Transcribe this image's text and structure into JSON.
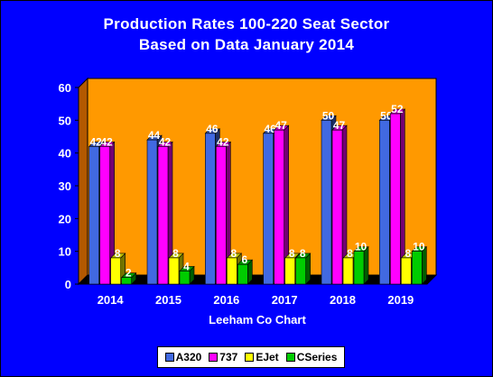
{
  "chart_data": {
    "type": "bar",
    "title": "Production Rates 100-220 Seat Sector",
    "subtitle": "Based on Data January 2014",
    "xlabel": "Leeham Co Chart",
    "ylabel": "",
    "ylim": [
      0,
      60
    ],
    "yticks": [
      0,
      10,
      20,
      30,
      40,
      50,
      60
    ],
    "categories": [
      "2014",
      "2015",
      "2016",
      "2017",
      "2018",
      "2019"
    ],
    "series": [
      {
        "name": "A320",
        "color": "#4169e1",
        "values": [
          42,
          44,
          46,
          46,
          50,
          50
        ]
      },
      {
        "name": "737",
        "color": "#ff00ff",
        "values": [
          42,
          42,
          42,
          47,
          47,
          52
        ]
      },
      {
        "name": "EJet",
        "color": "#ffff00",
        "values": [
          8,
          8,
          8,
          8,
          8,
          8
        ]
      },
      {
        "name": "CSeries",
        "color": "#00cc00",
        "values": [
          2,
          4,
          6,
          8,
          10,
          10
        ]
      }
    ],
    "legend_position": "bottom",
    "grid": false,
    "plot_background": "#ff9900",
    "background": "#0000ff"
  }
}
